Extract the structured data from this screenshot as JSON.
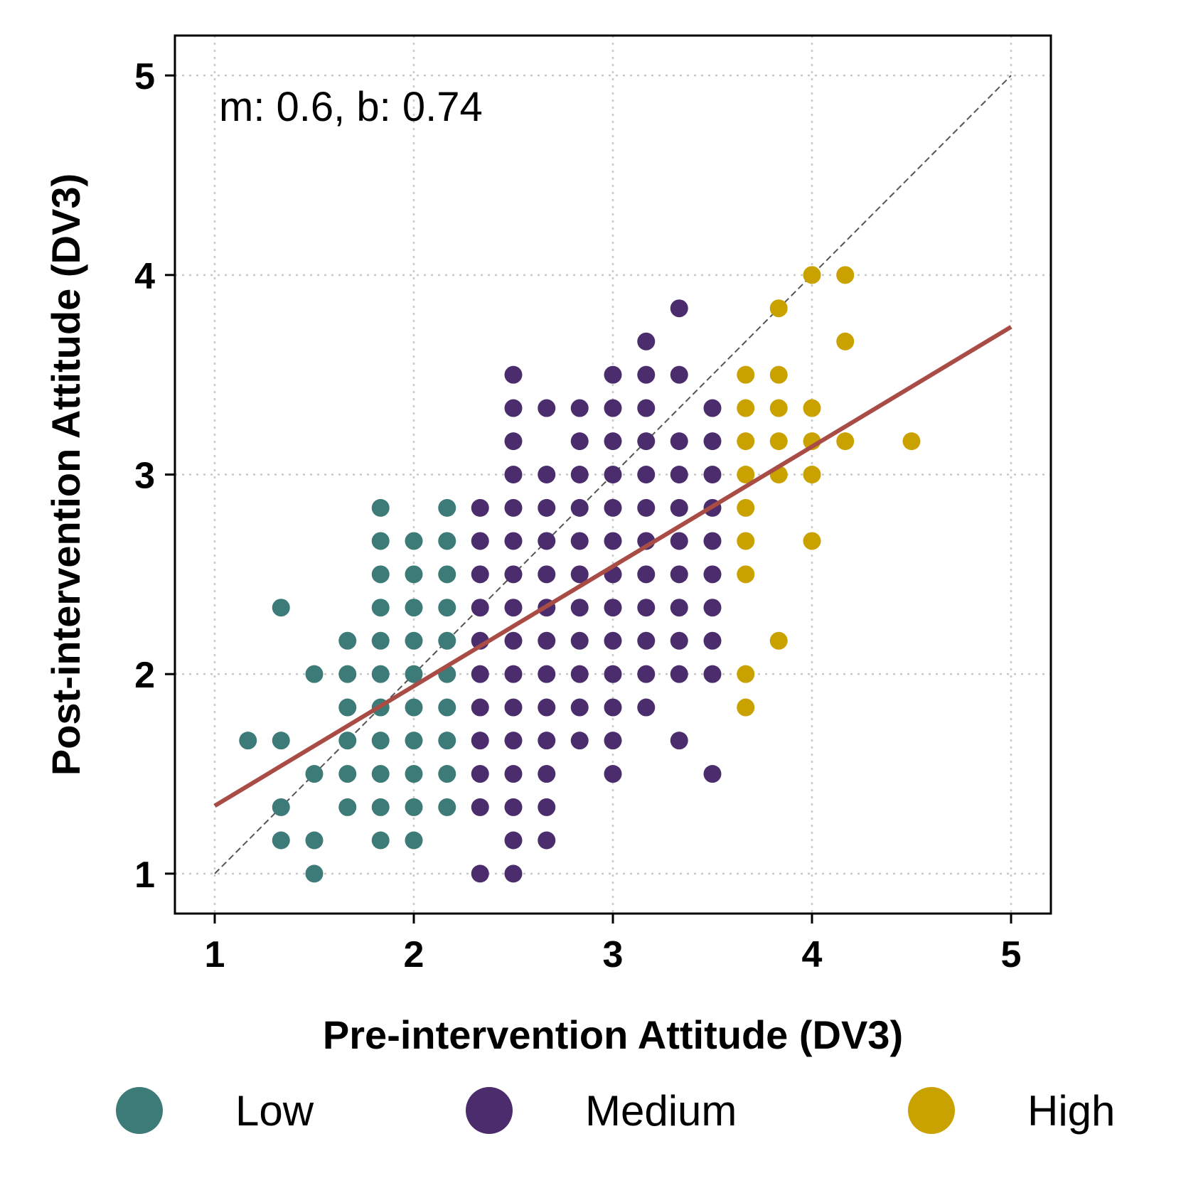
{
  "chart_data": {
    "type": "scatter",
    "xlabel": "Pre-intervention Attitude (DV3)",
    "ylabel": "Post-intervention Attitude (DV3)",
    "xlim": [
      0.8,
      5.2
    ],
    "ylim": [
      0.8,
      5.2
    ],
    "xticks": [
      "1",
      "2",
      "3",
      "4",
      "5"
    ],
    "yticks": [
      "1",
      "2",
      "3",
      "4",
      "5"
    ],
    "grid": true,
    "annotation": "m: 0.6, b: 0.74",
    "fit_line": {
      "m": 0.6,
      "b": 0.74,
      "x_range": [
        1,
        5
      ],
      "color": "#a84c45"
    },
    "identity_line": {
      "x_range": [
        1,
        5
      ],
      "color": "#555555"
    },
    "legend_position": "bottom",
    "series": [
      {
        "name": "Low",
        "color": "#3d7b78",
        "points": [
          [
            1.167,
            1.667
          ],
          [
            1.333,
            2.333
          ],
          [
            1.333,
            1.667
          ],
          [
            1.333,
            1.333
          ],
          [
            1.333,
            1.167
          ],
          [
            1.5,
            2.0
          ],
          [
            1.5,
            1.5
          ],
          [
            1.5,
            1.167
          ],
          [
            1.5,
            1.0
          ],
          [
            1.667,
            2.167
          ],
          [
            1.667,
            2.0
          ],
          [
            1.667,
            1.833
          ],
          [
            1.667,
            1.667
          ],
          [
            1.667,
            1.5
          ],
          [
            1.667,
            1.333
          ],
          [
            1.833,
            2.833
          ],
          [
            1.833,
            2.667
          ],
          [
            1.833,
            2.5
          ],
          [
            1.833,
            2.333
          ],
          [
            1.833,
            2.167
          ],
          [
            1.833,
            2.0
          ],
          [
            1.833,
            1.833
          ],
          [
            1.833,
            1.667
          ],
          [
            1.833,
            1.5
          ],
          [
            1.833,
            1.333
          ],
          [
            1.833,
            1.167
          ],
          [
            2.0,
            2.667
          ],
          [
            2.0,
            2.5
          ],
          [
            2.0,
            2.333
          ],
          [
            2.0,
            2.167
          ],
          [
            2.0,
            2.0
          ],
          [
            2.0,
            1.833
          ],
          [
            2.0,
            1.667
          ],
          [
            2.0,
            1.5
          ],
          [
            2.0,
            1.333
          ],
          [
            2.0,
            1.167
          ],
          [
            2.167,
            2.833
          ],
          [
            2.167,
            2.667
          ],
          [
            2.167,
            2.5
          ],
          [
            2.167,
            2.333
          ],
          [
            2.167,
            2.167
          ],
          [
            2.167,
            2.0
          ],
          [
            2.167,
            1.833
          ],
          [
            2.167,
            1.667
          ],
          [
            2.167,
            1.5
          ],
          [
            2.167,
            1.333
          ]
        ]
      },
      {
        "name": "Medium",
        "color": "#4b2d6e",
        "points": [
          [
            2.333,
            2.833
          ],
          [
            2.333,
            2.667
          ],
          [
            2.333,
            2.5
          ],
          [
            2.333,
            2.333
          ],
          [
            2.333,
            2.167
          ],
          [
            2.333,
            2.0
          ],
          [
            2.333,
            1.833
          ],
          [
            2.333,
            1.667
          ],
          [
            2.333,
            1.5
          ],
          [
            2.333,
            1.333
          ],
          [
            2.333,
            1.0
          ],
          [
            2.5,
            3.5
          ],
          [
            2.5,
            3.333
          ],
          [
            2.5,
            3.167
          ],
          [
            2.5,
            3.0
          ],
          [
            2.5,
            2.833
          ],
          [
            2.5,
            2.667
          ],
          [
            2.5,
            2.5
          ],
          [
            2.5,
            2.333
          ],
          [
            2.5,
            2.167
          ],
          [
            2.5,
            2.0
          ],
          [
            2.5,
            1.833
          ],
          [
            2.5,
            1.667
          ],
          [
            2.5,
            1.5
          ],
          [
            2.5,
            1.333
          ],
          [
            2.5,
            1.167
          ],
          [
            2.5,
            1.0
          ],
          [
            2.667,
            3.333
          ],
          [
            2.667,
            3.0
          ],
          [
            2.667,
            2.833
          ],
          [
            2.667,
            2.667
          ],
          [
            2.667,
            2.5
          ],
          [
            2.667,
            2.333
          ],
          [
            2.667,
            2.167
          ],
          [
            2.667,
            2.0
          ],
          [
            2.667,
            1.833
          ],
          [
            2.667,
            1.667
          ],
          [
            2.667,
            1.5
          ],
          [
            2.667,
            1.333
          ],
          [
            2.667,
            1.167
          ],
          [
            2.833,
            3.333
          ],
          [
            2.833,
            3.167
          ],
          [
            2.833,
            3.0
          ],
          [
            2.833,
            2.833
          ],
          [
            2.833,
            2.667
          ],
          [
            2.833,
            2.5
          ],
          [
            2.833,
            2.333
          ],
          [
            2.833,
            2.167
          ],
          [
            2.833,
            2.0
          ],
          [
            2.833,
            1.833
          ],
          [
            2.833,
            1.667
          ],
          [
            3.0,
            3.5
          ],
          [
            3.0,
            3.333
          ],
          [
            3.0,
            3.167
          ],
          [
            3.0,
            3.0
          ],
          [
            3.0,
            2.833
          ],
          [
            3.0,
            2.667
          ],
          [
            3.0,
            2.5
          ],
          [
            3.0,
            2.333
          ],
          [
            3.0,
            2.167
          ],
          [
            3.0,
            2.0
          ],
          [
            3.0,
            1.833
          ],
          [
            3.0,
            1.667
          ],
          [
            3.0,
            1.5
          ],
          [
            3.167,
            3.667
          ],
          [
            3.167,
            3.5
          ],
          [
            3.167,
            3.333
          ],
          [
            3.167,
            3.167
          ],
          [
            3.167,
            3.0
          ],
          [
            3.167,
            2.833
          ],
          [
            3.167,
            2.667
          ],
          [
            3.167,
            2.5
          ],
          [
            3.167,
            2.333
          ],
          [
            3.167,
            2.167
          ],
          [
            3.167,
            2.0
          ],
          [
            3.167,
            1.833
          ],
          [
            3.333,
            3.833
          ],
          [
            3.333,
            3.5
          ],
          [
            3.333,
            3.167
          ],
          [
            3.333,
            3.0
          ],
          [
            3.333,
            2.833
          ],
          [
            3.333,
            2.667
          ],
          [
            3.333,
            2.5
          ],
          [
            3.333,
            2.333
          ],
          [
            3.333,
            2.167
          ],
          [
            3.333,
            2.0
          ],
          [
            3.333,
            1.667
          ],
          [
            3.5,
            3.333
          ],
          [
            3.5,
            3.167
          ],
          [
            3.5,
            3.0
          ],
          [
            3.5,
            2.833
          ],
          [
            3.5,
            2.667
          ],
          [
            3.5,
            2.5
          ],
          [
            3.5,
            2.333
          ],
          [
            3.5,
            2.167
          ],
          [
            3.5,
            2.0
          ],
          [
            3.5,
            1.5
          ]
        ]
      },
      {
        "name": "High",
        "color": "#c9a200",
        "points": [
          [
            3.667,
            3.5
          ],
          [
            3.667,
            3.333
          ],
          [
            3.667,
            3.167
          ],
          [
            3.667,
            3.0
          ],
          [
            3.667,
            2.833
          ],
          [
            3.667,
            2.667
          ],
          [
            3.667,
            2.5
          ],
          [
            3.667,
            2.0
          ],
          [
            3.667,
            1.833
          ],
          [
            3.833,
            3.833
          ],
          [
            3.833,
            3.5
          ],
          [
            3.833,
            3.333
          ],
          [
            3.833,
            3.167
          ],
          [
            3.833,
            3.0
          ],
          [
            3.833,
            2.167
          ],
          [
            4.0,
            4.0
          ],
          [
            4.0,
            3.333
          ],
          [
            4.0,
            3.167
          ],
          [
            4.0,
            3.0
          ],
          [
            4.0,
            2.667
          ],
          [
            4.167,
            4.0
          ],
          [
            4.167,
            3.667
          ],
          [
            4.167,
            3.167
          ],
          [
            4.5,
            3.167
          ]
        ]
      }
    ]
  }
}
